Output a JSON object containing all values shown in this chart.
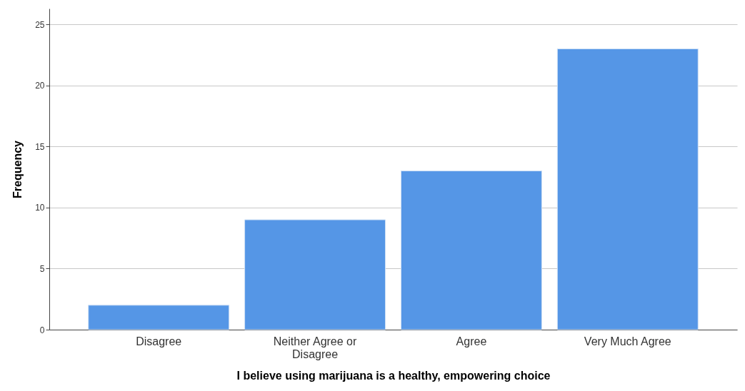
{
  "chart_data": {
    "type": "bar",
    "xlabel": "I believe using marijuana is a healthy, empowering choice",
    "ylabel": "Frequency",
    "categories": [
      "Disagree",
      "Neither Agree or Disagree",
      "Agree",
      "Very Much Agree"
    ],
    "values": [
      2,
      9,
      13,
      23
    ],
    "color": "#5596e6",
    "ylim": [
      0,
      26.3
    ],
    "yticks": [
      0,
      5,
      10,
      15,
      20,
      25
    ],
    "grid": "y"
  }
}
